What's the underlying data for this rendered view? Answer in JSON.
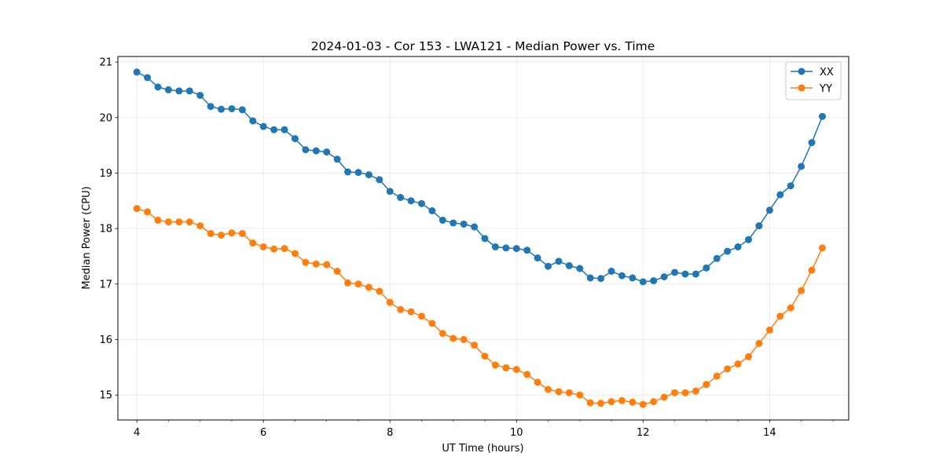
{
  "chart_data": {
    "type": "line",
    "title": "2024-01-03 - Cor 153 - LWA121 - Median Power vs. Time",
    "xlabel": "UT Time (hours)",
    "ylabel": "Median Power (CPU)",
    "xlim": [
      3.7,
      15.25
    ],
    "ylim": [
      14.55,
      21.1
    ],
    "xticks": [
      4,
      6,
      8,
      10,
      12,
      14
    ],
    "yticks": [
      15,
      16,
      17,
      18,
      19,
      20,
      21
    ],
    "grid": true,
    "legend_position": "top-right",
    "x": [
      4.0,
      4.1667,
      4.3333,
      4.5,
      4.6667,
      4.8333,
      5.0,
      5.1667,
      5.3333,
      5.5,
      5.6667,
      5.8333,
      6.0,
      6.1667,
      6.3333,
      6.5,
      6.6667,
      6.8333,
      7.0,
      7.1667,
      7.3333,
      7.5,
      7.6667,
      7.8333,
      8.0,
      8.1667,
      8.3333,
      8.5,
      8.6667,
      8.8333,
      9.0,
      9.1667,
      9.3333,
      9.5,
      9.6667,
      9.8333,
      10.0,
      10.1667,
      10.3333,
      10.5,
      10.6667,
      10.8333,
      11.0,
      11.1667,
      11.3333,
      11.5,
      11.6667,
      11.8333,
      12.0,
      12.1667,
      12.3333,
      12.5,
      12.6667,
      12.8333,
      13.0,
      13.1667,
      13.3333,
      13.5,
      13.6667,
      13.8333,
      14.0,
      14.1667,
      14.3333,
      14.5,
      14.6667,
      14.8333
    ],
    "series": [
      {
        "name": "XX",
        "color": "#1f77b4",
        "values": [
          20.82,
          20.72,
          20.55,
          20.5,
          20.48,
          20.48,
          20.4,
          20.2,
          20.15,
          20.16,
          20.14,
          19.94,
          19.84,
          19.78,
          19.78,
          19.62,
          19.42,
          19.4,
          19.38,
          19.25,
          19.02,
          19.01,
          18.97,
          18.88,
          18.67,
          18.56,
          18.5,
          18.45,
          18.32,
          18.15,
          18.1,
          18.08,
          18.03,
          17.82,
          17.67,
          17.65,
          17.64,
          17.61,
          17.47,
          17.32,
          17.41,
          17.33,
          17.28,
          17.11,
          17.1,
          17.23,
          17.15,
          17.11,
          17.04,
          17.06,
          17.13,
          17.21,
          17.18,
          17.18,
          17.29,
          17.46,
          17.59,
          17.67,
          17.8,
          18.05,
          18.33,
          18.61,
          18.77,
          19.12,
          19.55,
          20.02
        ]
      },
      {
        "name": "YY",
        "color": "#ff7f0e",
        "values": [
          18.36,
          18.3,
          18.15,
          18.12,
          18.12,
          18.12,
          18.05,
          17.91,
          17.88,
          17.92,
          17.91,
          17.74,
          17.67,
          17.63,
          17.64,
          17.55,
          17.39,
          17.36,
          17.35,
          17.23,
          17.02,
          17.0,
          16.94,
          16.87,
          16.67,
          16.54,
          16.5,
          16.42,
          16.29,
          16.11,
          16.02,
          16.0,
          15.9,
          15.7,
          15.54,
          15.49,
          15.46,
          15.37,
          15.23,
          15.1,
          15.06,
          15.04,
          15.0,
          14.86,
          14.85,
          14.88,
          14.9,
          14.87,
          14.83,
          14.88,
          14.96,
          15.04,
          15.04,
          15.07,
          15.19,
          15.34,
          15.47,
          15.56,
          15.69,
          15.93,
          16.17,
          16.42,
          16.57,
          16.88,
          17.25,
          17.65
        ]
      }
    ]
  }
}
